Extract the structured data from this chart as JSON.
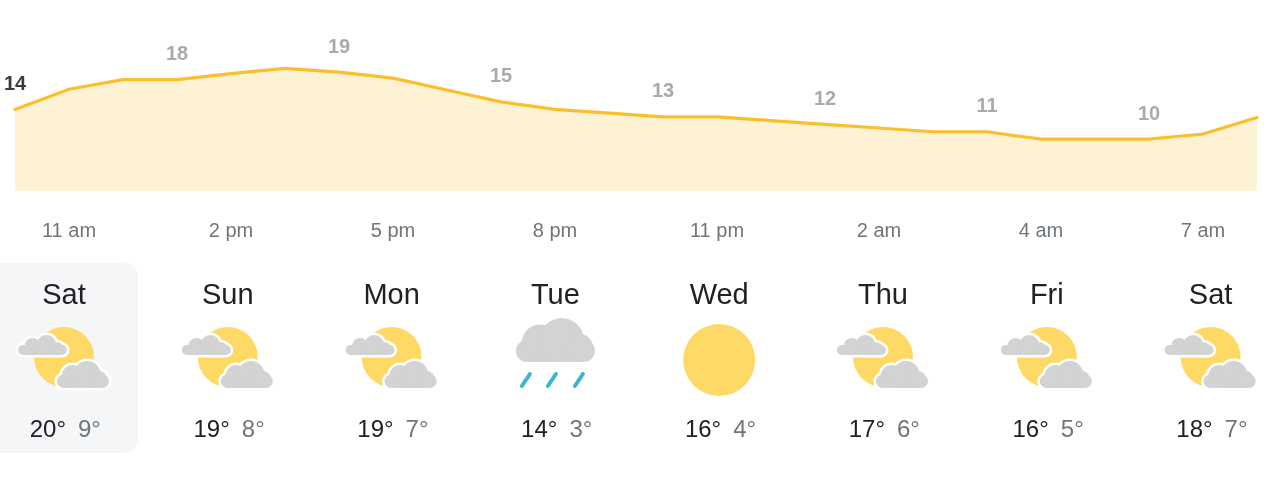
{
  "chart_data": [
    {
      "type": "area",
      "categories": [
        null,
        "11 am",
        null,
        null,
        "2 pm",
        null,
        null,
        "5 pm",
        null,
        null,
        "8 pm",
        null,
        null,
        "11 pm",
        null,
        null,
        "2 am",
        null,
        null,
        "4 am",
        null,
        null,
        "7 am",
        null
      ],
      "values": [
        14,
        16.7,
        18,
        18,
        18.8,
        19.5,
        19,
        18.2,
        16.6,
        15,
        14,
        13.5,
        13,
        13,
        12.5,
        12,
        11.5,
        11,
        11,
        10,
        10,
        10,
        10.7,
        12.9
      ],
      "value_labels": [
        "14",
        null,
        null,
        "18",
        null,
        null,
        "19",
        null,
        null,
        "15",
        null,
        null,
        "13",
        null,
        null,
        "12",
        null,
        null,
        "11",
        null,
        null,
        "10",
        null,
        null
      ],
      "color": "#fbbf2e",
      "tick_labels": "x"
    },
    {
      "type": "other",
      "categories": [
        "Sat",
        "Sun",
        "Mon",
        "Tue",
        "Wed",
        "Thu",
        "Fri",
        "Sat"
      ],
      "series": [
        {
          "values": [
            20,
            19,
            19,
            14,
            16,
            17,
            16,
            18
          ],
          "value_labels": [
            "20°",
            "19°",
            "19°",
            "14°",
            "16°",
            "17°",
            "16°",
            "18°"
          ]
        },
        {
          "values": [
            9,
            8,
            7,
            3,
            4,
            6,
            5,
            7
          ],
          "value_labels": [
            "9°",
            "8°",
            "7°",
            "3°",
            "4°",
            "6°",
            "5°",
            "7°"
          ]
        }
      ]
    }
  ]
}
